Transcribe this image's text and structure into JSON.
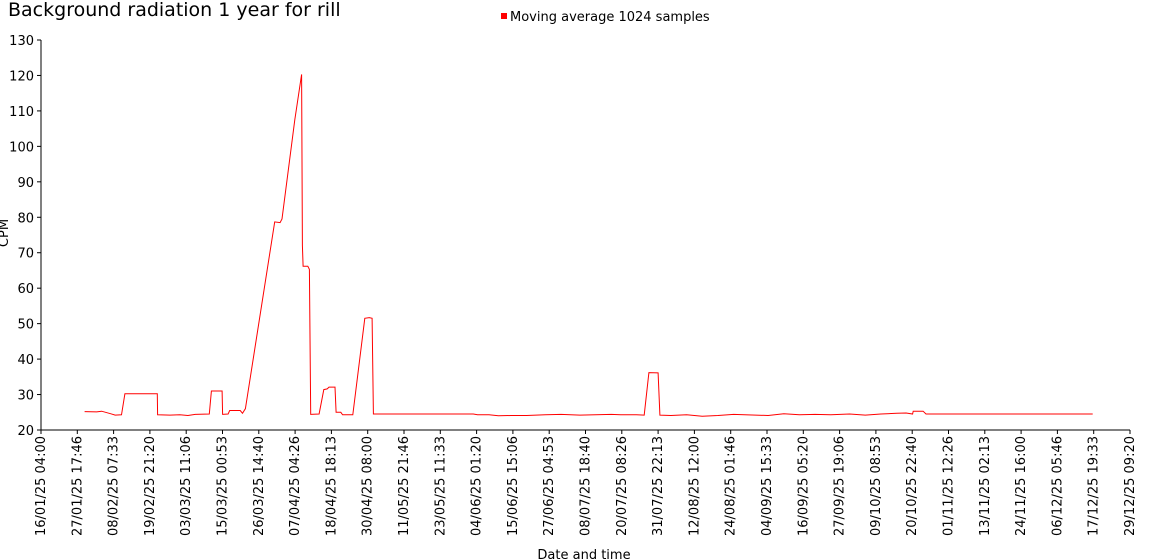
{
  "chart_data": {
    "type": "line",
    "title": "Background radiation 1 year for rill",
    "xlabel": "Date and time",
    "ylabel": "CPM",
    "ylim": [
      20,
      130
    ],
    "yticks": [
      20,
      30,
      40,
      50,
      60,
      70,
      80,
      90,
      100,
      110,
      120,
      130
    ],
    "x_range": [
      "16/01/25 04:00",
      "29/12/25 09:20"
    ],
    "xticks": [
      "16/01/25 04:00",
      "27/01/25 17:46",
      "08/02/25 07:33",
      "19/02/25 21:20",
      "03/03/25 11:06",
      "15/03/25 00:53",
      "26/03/25 14:40",
      "07/04/25 04:26",
      "18/04/25 18:13",
      "30/04/25 08:00",
      "11/05/25 21:46",
      "23/05/25 11:33",
      "04/06/25 01:20",
      "15/06/25 15:06",
      "27/06/25 04:53",
      "08/07/25 18:40",
      "20/07/25 08:26",
      "31/07/25 22:13",
      "12/08/25 12:00",
      "24/08/25 01:46",
      "04/09/25 15:33",
      "16/09/25 05:20",
      "27/09/25 19:06",
      "09/10/25 08:53",
      "20/10/25 22:40",
      "01/11/25 12:26",
      "13/11/25 02:13",
      "24/11/25 16:00",
      "06/12/25 05:46",
      "17/12/25 19:33",
      "29/12/25 09:20"
    ],
    "grid": false,
    "legend_position": "top-center",
    "series": [
      {
        "name": "Moving average 1024 samples",
        "color": "#ff0000",
        "points": [
          [
            "30/01/25 02:00",
            25.2
          ],
          [
            "02/02/25 22:00",
            25.1
          ],
          [
            "04/02/25 12:00",
            25.3
          ],
          [
            "07/02/25 08:00",
            24.6
          ],
          [
            "08/02/25 20:00",
            24.2
          ],
          [
            "10/02/25 20:00",
            24.3
          ],
          [
            "11/02/25 22:00",
            30.2
          ],
          [
            "22/02/25 06:00",
            30.2
          ],
          [
            "22/02/25 08:00",
            24.3
          ],
          [
            "26/02/25 06:00",
            24.2
          ],
          [
            "01/03/25 10:00",
            24.3
          ],
          [
            "04/03/25 00:00",
            24.1
          ],
          [
            "06/03/25 08:00",
            24.4
          ],
          [
            "10/03/25 20:00",
            24.5
          ],
          [
            "11/03/25 12:00",
            31.0
          ],
          [
            "14/03/25 22:00",
            31.0
          ],
          [
            "15/03/25 02:00",
            24.4
          ],
          [
            "16/03/25 20:00",
            24.5
          ],
          [
            "17/03/25 08:00",
            25.5
          ],
          [
            "20/03/25 16:00",
            25.5
          ],
          [
            "21/03/25 10:00",
            24.7
          ],
          [
            "22/03/25 08:00",
            26.0
          ],
          [
            "31/03/25 16:00",
            78.7
          ],
          [
            "02/04/25 10:00",
            78.5
          ],
          [
            "03/04/25 00:00",
            79.5
          ],
          [
            "07/04/25 02:00",
            107.5
          ],
          [
            "09/04/25 06:00",
            120.3
          ],
          [
            "09/04/25 12:00",
            72.0
          ],
          [
            "09/04/25 18:00",
            66.2
          ],
          [
            "11/04/25 06:00",
            66.2
          ],
          [
            "11/04/25 18:00",
            65.3
          ],
          [
            "12/04/25 04:00",
            24.4
          ],
          [
            "14/04/25 20:00",
            24.5
          ],
          [
            "16/04/25 08:00",
            31.4
          ],
          [
            "17/04/25 10:00",
            31.6
          ],
          [
            "18/04/25 00:00",
            32.1
          ],
          [
            "19/04/25 22:00",
            32.1
          ],
          [
            "20/04/25 06:00",
            25.0
          ],
          [
            "21/04/25 18:00",
            25.0
          ],
          [
            "22/04/25 08:00",
            24.3
          ],
          [
            "25/04/25 14:00",
            24.3
          ],
          [
            "29/04/25 10:00",
            51.5
          ],
          [
            "30/04/25 20:00",
            51.7
          ],
          [
            "01/05/25 18:00",
            51.5
          ],
          [
            "02/05/25 04:00",
            24.5
          ],
          [
            "03/06/25 00:00",
            24.5
          ],
          [
            "04/06/25 08:00",
            24.3
          ],
          [
            "08/06/25 00:00",
            24.3
          ],
          [
            "11/06/25 00:00",
            24.0
          ],
          [
            "15/06/25 00:00",
            24.1
          ],
          [
            "20/06/25 00:00",
            24.1
          ],
          [
            "26/06/25 00:00",
            24.3
          ],
          [
            "01/07/25 00:00",
            24.4
          ],
          [
            "07/07/25 00:00",
            24.2
          ],
          [
            "12/07/25 00:00",
            24.3
          ],
          [
            "17/07/25 00:00",
            24.4
          ],
          [
            "20/07/25 00:00",
            24.3
          ],
          [
            "25/07/25 00:00",
            24.3
          ],
          [
            "27/07/25 12:00",
            24.2
          ],
          [
            "29/07/25 00:00",
            36.2
          ],
          [
            "31/07/25 22:00",
            36.1
          ],
          [
            "01/08/25 12:00",
            24.2
          ],
          [
            "05/08/25 00:00",
            24.1
          ],
          [
            "10/08/25 00:00",
            24.3
          ],
          [
            "15/08/25 00:00",
            23.9
          ],
          [
            "20/08/25 00:00",
            24.1
          ],
          [
            "25/08/25 00:00",
            24.4
          ],
          [
            "01/09/25 00:00",
            24.2
          ],
          [
            "05/09/25 00:00",
            24.1
          ],
          [
            "10/09/25 00:00",
            24.6
          ],
          [
            "15/09/25 00:00",
            24.3
          ],
          [
            "20/09/25 00:00",
            24.4
          ],
          [
            "25/09/25 00:00",
            24.3
          ],
          [
            "01/10/25 00:00",
            24.5
          ],
          [
            "06/10/25 00:00",
            24.2
          ],
          [
            "11/10/25 00:00",
            24.5
          ],
          [
            "16/10/25 00:00",
            24.7
          ],
          [
            "19/10/25 00:00",
            24.8
          ],
          [
            "21/10/25 02:00",
            24.5
          ],
          [
            "21/10/25 06:00",
            25.3
          ],
          [
            "24/10/25 10:00",
            25.3
          ],
          [
            "25/10/25 08:00",
            24.5
          ],
          [
            "17/12/25 12:00",
            24.5
          ]
        ]
      }
    ]
  }
}
